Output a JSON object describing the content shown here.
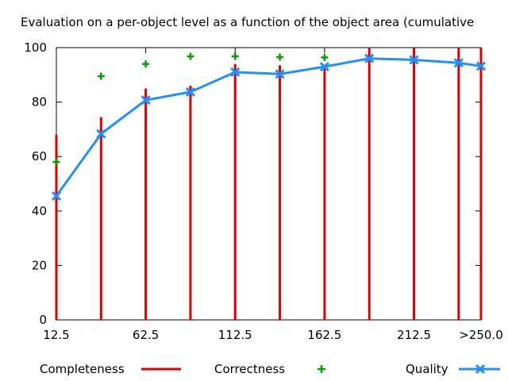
{
  "chart_data": {
    "type": "bar",
    "title": "Evaluation on a per-object level as a function of the object area (cumulative",
    "xlabel": "",
    "ylabel": "",
    "ylim": [
      0,
      100
    ],
    "yticks": [
      0,
      20,
      40,
      60,
      80,
      100
    ],
    "x_tick_labels": [
      "12.5",
      "62.5",
      "112.5",
      "162.5",
      "212.5",
      ">250.0"
    ],
    "x": [
      12.5,
      37.5,
      62.5,
      87.5,
      112.5,
      137.5,
      162.5,
      187.5,
      212.5,
      237.5,
      250
    ],
    "grid": false,
    "legend": "bottom",
    "series": [
      {
        "name": "Completeness",
        "style": "impulses",
        "color": "#e00000",
        "values": [
          68,
          74.5,
          85,
          86,
          94,
          93.5,
          93.5,
          100,
          100,
          100,
          100
        ]
      },
      {
        "name": "Correctness",
        "style": "points",
        "color": "#00a000",
        "values": [
          58,
          89.5,
          94,
          96.8,
          96.8,
          96.5,
          96.4,
          null,
          null,
          null,
          null
        ]
      },
      {
        "name": "Quality",
        "style": "linespoints",
        "color": "#1e90ff",
        "values": [
          45.5,
          68.3,
          80.7,
          83.7,
          91,
          90.3,
          93,
          96,
          95.5,
          94.4,
          93.2
        ]
      }
    ]
  }
}
